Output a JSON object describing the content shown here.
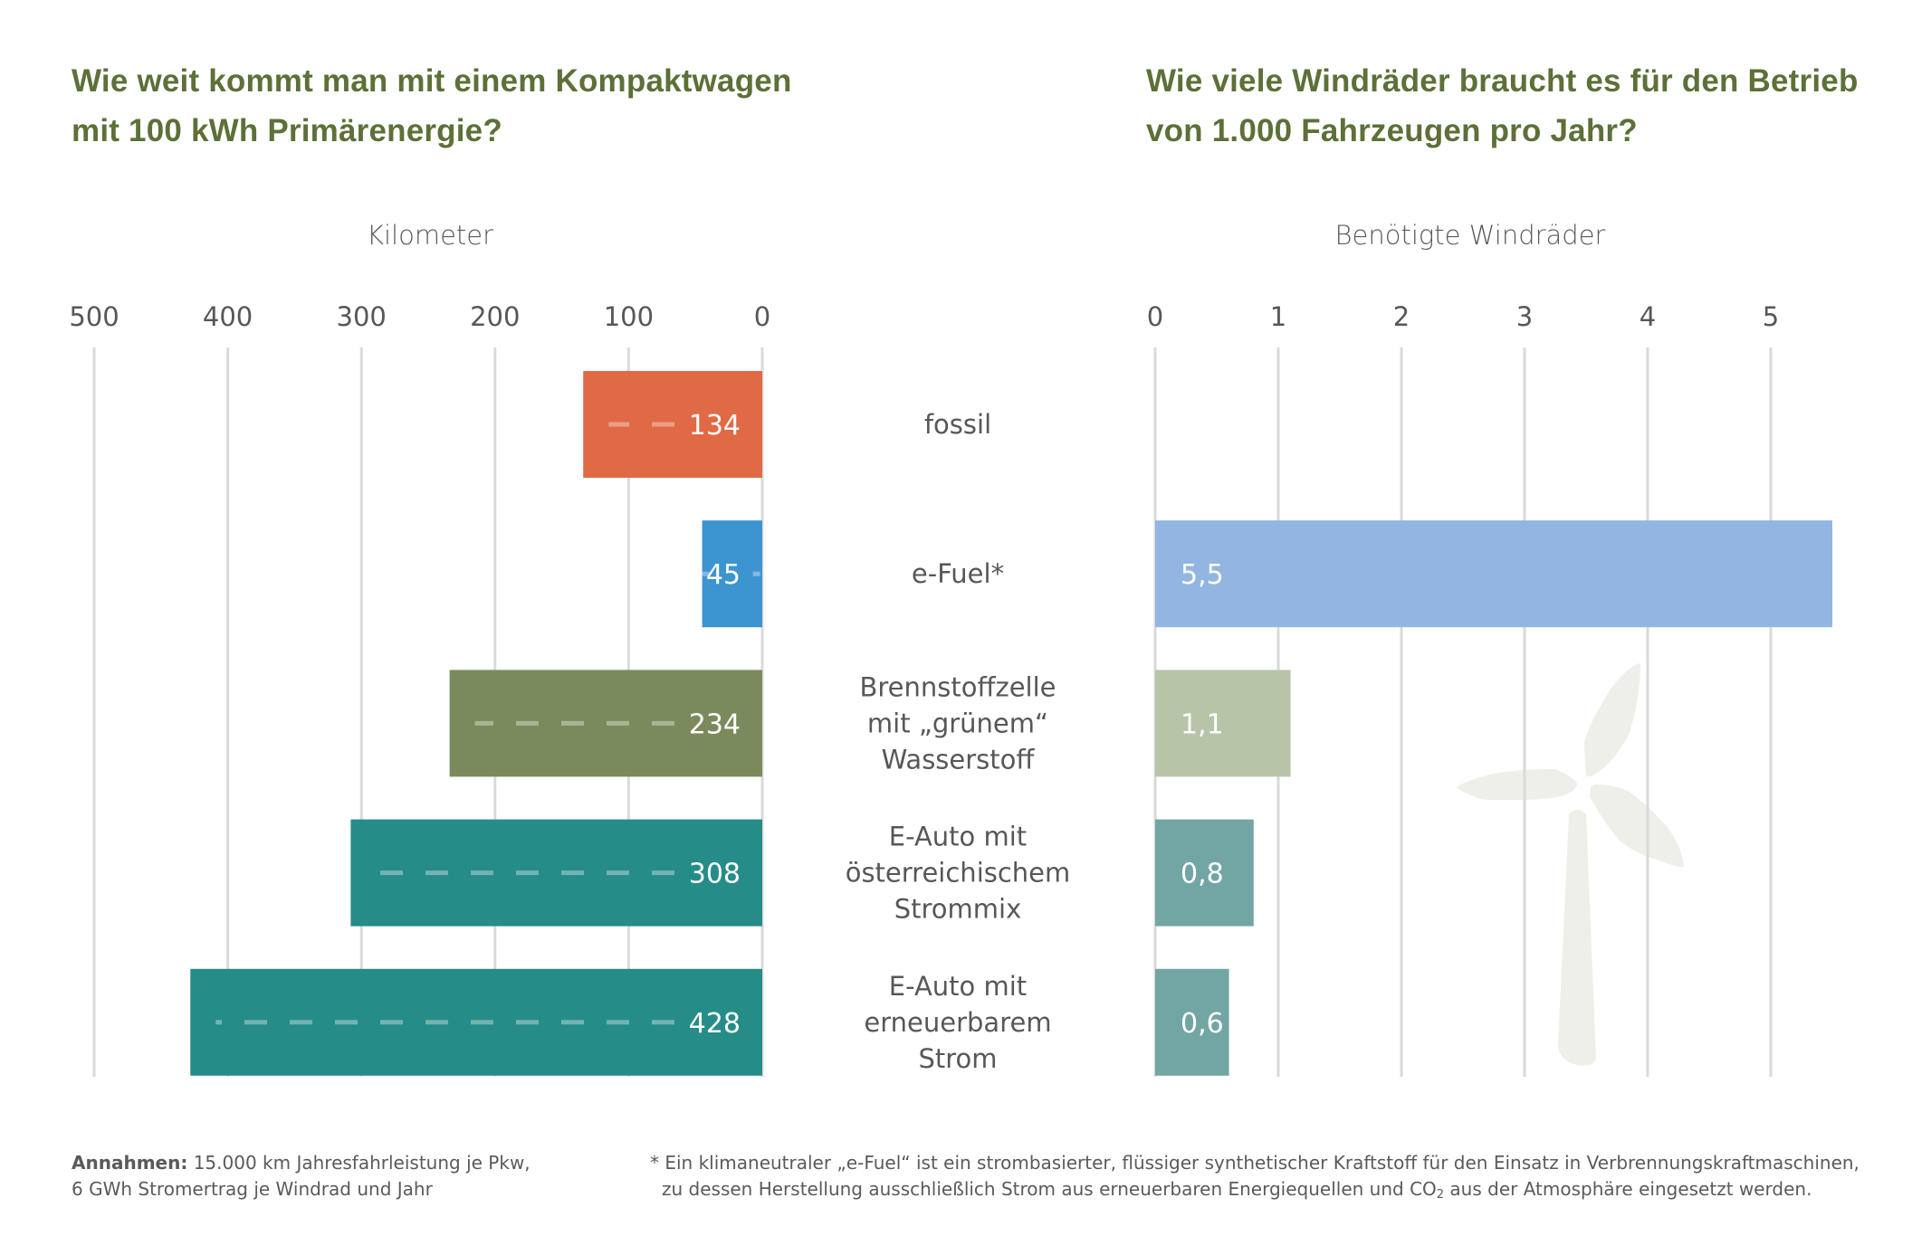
{
  "left_title": {
    "line1": "Wie weit kommt man mit einem Kompaktwagen",
    "line2": "mit 100 kWh Primärenergie?"
  },
  "right_title": {
    "line1": "Wie viele Windräder braucht es für den Betrieb",
    "line2": "von 1.000 Fahrzeugen pro Jahr?"
  },
  "footer": {
    "assumptions_label": "Annahmen:",
    "assumptions_line1": " 15.000 km Jahresfahrleistung je Pkw,",
    "assumptions_line2": "6 GWh Stromertrag je Windrad und Jahr",
    "note_line1": "* Ein klimaneutraler „e-Fuel“ ist ein strombasierter, flüssiger synthetischer Kraftstoff für den Einsatz in Verbrennungskraftmaschinen,",
    "note_line2_a": "zu dessen Herstellung ausschließlich Strom aus erneuerbaren Energiequellen und CO",
    "note_line2_sub": "2",
    "note_line2_b": " aus der Atmosphäre eingesetzt werden."
  },
  "chart_data": [
    {
      "type": "bar",
      "orientation": "horizontal",
      "direction": "right-to-left",
      "title": "Wie weit kommt man mit einem Kompaktwagen mit 100 kWh Primärenergie?",
      "xlabel": "Kilometer",
      "ylabel": "",
      "xlim": [
        0,
        500
      ],
      "ticks": [
        500,
        400,
        300,
        200,
        100,
        0
      ],
      "tick_labels": [
        "500",
        "400",
        "300",
        "200",
        "100",
        "0"
      ],
      "grid": true,
      "categories": [
        [
          "fossil"
        ],
        [
          "e-Fuel*"
        ],
        [
          "Brennstoffzelle",
          "mit „grünem“",
          "Wasserstoff"
        ],
        [
          "E-Auto mit",
          "österreichischem",
          "Strommix"
        ],
        [
          "E-Auto mit",
          "erneuerbarem",
          "Strom"
        ]
      ],
      "values": [
        134,
        45,
        234,
        308,
        428
      ],
      "value_labels": [
        "134",
        "45",
        "234",
        "308",
        "428"
      ],
      "colors": [
        "#E06A45",
        "#3C95D0",
        "#7B8A5C",
        "#268C88",
        "#268C88"
      ]
    },
    {
      "type": "bar",
      "orientation": "horizontal",
      "direction": "left-to-right",
      "title": "Wie viele Windräder braucht es für den Betrieb von 1.000 Fahrzeugen pro Jahr?",
      "xlabel": "Benötigte Windräder",
      "ylabel": "",
      "xlim": [
        0,
        5.5
      ],
      "ticks": [
        0,
        1,
        2,
        3,
        4,
        5
      ],
      "tick_labels": [
        "0",
        "1",
        "2",
        "3",
        "4",
        "5"
      ],
      "grid": true,
      "categories": [
        "fossil",
        "e-Fuel*",
        "Brennstoffzelle mit „grünem“ Wasserstoff",
        "E-Auto mit österreichischem Strommix",
        "E-Auto mit erneuerbarem Strom"
      ],
      "values": [
        null,
        5.5,
        1.1,
        0.8,
        0.6
      ],
      "value_labels": [
        "",
        "5,5",
        "1,1",
        "0,8",
        "0,6"
      ],
      "colors": [
        "#E06A45",
        "#92B6E1",
        "#B8C4A8",
        "#72A6A5",
        "#72A6A5"
      ]
    }
  ],
  "decoration": {
    "icon": "wind-turbine",
    "color": "#EDEFE8"
  },
  "colors": {
    "title": "#5C7038",
    "grid": "#DADADA",
    "text": "#575757"
  }
}
